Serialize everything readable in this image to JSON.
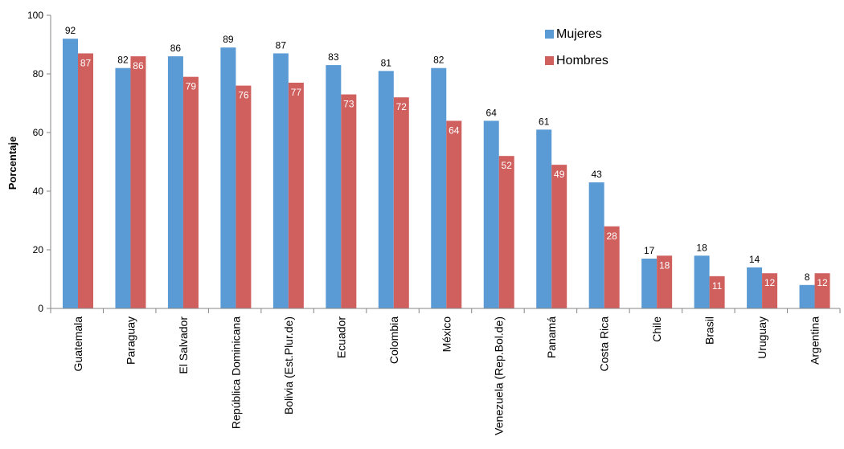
{
  "chart_data": {
    "type": "bar",
    "title": "",
    "xlabel": "",
    "ylabel": "Porcentaje",
    "ylim": [
      0,
      100
    ],
    "yticks": [
      0,
      20,
      40,
      60,
      80,
      100
    ],
    "grid": false,
    "legend_position": "top-right",
    "categories": [
      "Guatemala",
      "Paraguay",
      "El Salvador",
      "República Dominicana",
      "Bolivia (Est.Plur.de)",
      "Ecuador",
      "Colombia",
      "México",
      "Venezuela (Rep.Bol.de)",
      "Panamá",
      "Costa Rica",
      "Chile",
      "Brasil",
      "Uruguay",
      "Argentina"
    ],
    "series": [
      {
        "name": "Mujeres",
        "color": "#5b9bd5",
        "values": [
          92,
          82,
          86,
          89,
          87,
          83,
          81,
          82,
          64,
          61,
          43,
          17,
          18,
          14,
          8
        ]
      },
      {
        "name": "Hombres",
        "color": "#d0605e",
        "values": [
          87,
          86,
          79,
          76,
          77,
          73,
          72,
          64,
          52,
          49,
          28,
          18,
          11,
          12,
          12
        ]
      }
    ]
  }
}
